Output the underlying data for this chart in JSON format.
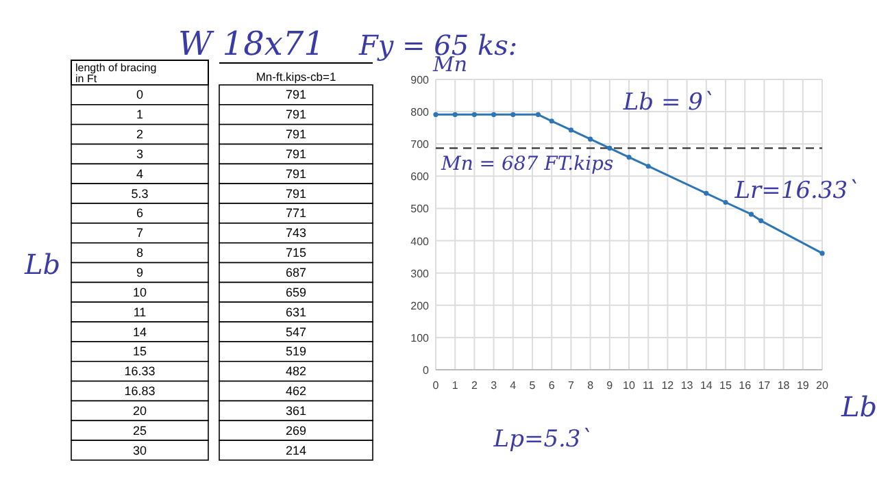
{
  "chart_data": [
    {
      "type": "other",
      "title": "W 18x71",
      "annotations": [
        "length of bracing in Ft",
        "Mn-ft.kips-cb=1",
        "Lb"
      ],
      "categories": [
        "0",
        "1",
        "2",
        "3",
        "4",
        "5.3",
        "6",
        "7",
        "8",
        "9",
        "10",
        "11",
        "14",
        "15",
        "16.33",
        "16.83",
        "20",
        "25",
        "30"
      ],
      "values": [
        791,
        791,
        791,
        791,
        791,
        791,
        771,
        743,
        715,
        687,
        659,
        631,
        547,
        519,
        482,
        462,
        361,
        269,
        214
      ],
      "data_labels": true
    },
    {
      "type": "line",
      "title": "Fy = 65 ks:",
      "xlabel": "Lb",
      "ylabel": "Mn",
      "x": [
        0,
        1,
        2,
        3,
        4,
        5.3,
        6,
        7,
        8,
        9,
        10,
        11,
        14,
        15,
        16.33,
        16.83,
        20
      ],
      "series": [
        {
          "color": "#2e75b6",
          "values": [
            791,
            791,
            791,
            791,
            791,
            791,
            771,
            743,
            715,
            687,
            659,
            631,
            547,
            519,
            482,
            462,
            361
          ]
        }
      ],
      "xlim": [
        0,
        20
      ],
      "xticks": [
        0,
        1,
        2,
        3,
        4,
        5,
        6,
        7,
        8,
        9,
        10,
        11,
        12,
        13,
        14,
        15,
        16,
        17,
        18,
        19,
        20
      ],
      "ylim": [
        0,
        900
      ],
      "yticks": [
        0,
        100,
        200,
        300,
        400,
        500,
        600,
        700,
        800,
        900
      ],
      "grid": true,
      "marker": "circle",
      "line_style": "solid",
      "ref_lines": [
        {
          "axis": "y",
          "value": 687,
          "label": "Mn = 687 FT.kips",
          "line_style": "dashed",
          "color": "#333333"
        }
      ],
      "annotations": [
        "Lp=5.3`",
        {
          "text": "Lb = 9`",
          "x": 9,
          "y": 687
        },
        {
          "text": "Lr=16.33`",
          "x": 16.33,
          "y": 482
        }
      ]
    }
  ]
}
